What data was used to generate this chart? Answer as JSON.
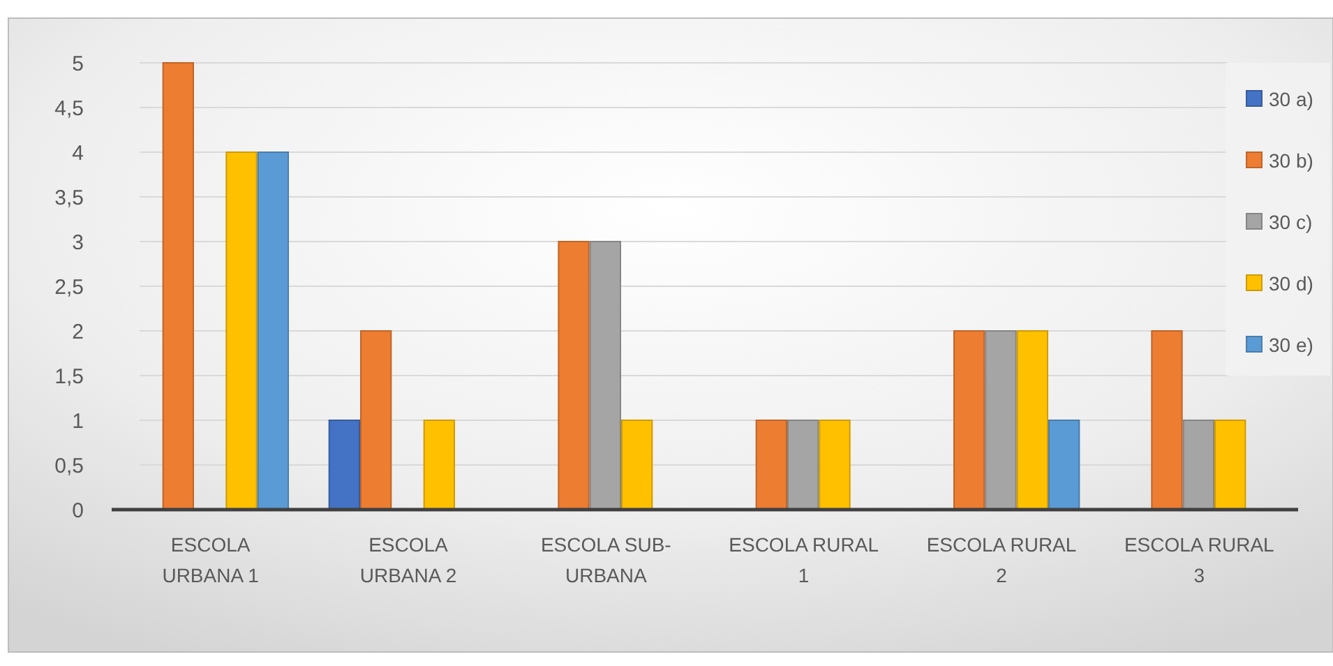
{
  "chart_data": {
    "type": "bar",
    "categories": [
      "ESCOLA URBANA 1",
      "ESCOLA URBANA 2",
      "ESCOLA SUB-URBANA",
      "ESCOLA RURAL 1",
      "ESCOLA RURAL 2",
      "ESCOLA RURAL 3"
    ],
    "series": [
      {
        "name": "30 a)",
        "color": "#4472c4",
        "values": [
          0,
          1,
          0,
          0,
          0,
          0
        ]
      },
      {
        "name": "30 b)",
        "color": "#ed7d31",
        "values": [
          5,
          2,
          3,
          1,
          2,
          2
        ]
      },
      {
        "name": "30 c)",
        "color": "#a5a5a5",
        "values": [
          0,
          0,
          3,
          1,
          2,
          1
        ]
      },
      {
        "name": "30 d)",
        "color": "#ffc000",
        "values": [
          4,
          1,
          1,
          1,
          2,
          1
        ]
      },
      {
        "name": "30 e)",
        "color": "#5b9bd5",
        "values": [
          4,
          0,
          0,
          0,
          1,
          0
        ]
      }
    ],
    "ylim": [
      0,
      5
    ],
    "yticks": [
      0,
      {
        "value": 0.5,
        "label": "0,5"
      },
      1,
      {
        "value": 1.5,
        "label": "1,5"
      },
      2,
      {
        "value": 2.5,
        "label": "2,5"
      },
      3,
      {
        "value": 3.5,
        "label": "3,5"
      },
      4,
      {
        "value": 4.5,
        "label": "4,5"
      },
      5
    ],
    "grid": "y",
    "legend": "right"
  }
}
